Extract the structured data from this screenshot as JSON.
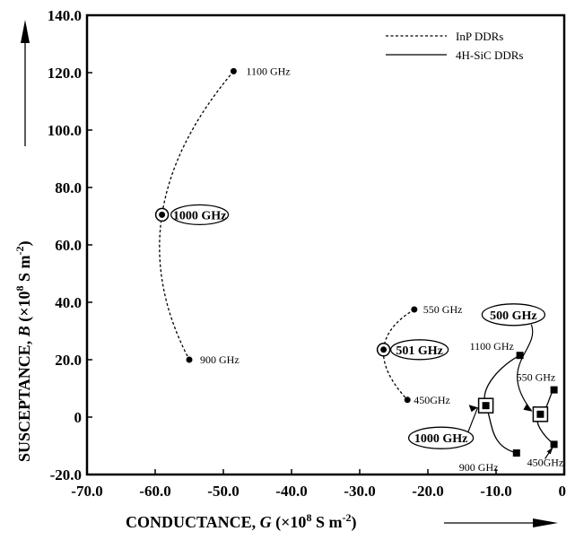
{
  "chart_data": {
    "type": "scatter",
    "title": "",
    "xlabel": {
      "prefix": "CONDUCTANCE, ",
      "symbol": "G",
      "unit": " (×10",
      "exp": "8",
      "unit2": " S m",
      "exp2": "-2",
      "close": ")"
    },
    "ylabel": {
      "prefix": "SUSCEPTANCE, ",
      "symbol": "B",
      "unit": " (×10",
      "exp": "8",
      "unit2": " S m",
      "exp2": "-2",
      "close": ")"
    },
    "xlim": [
      -70,
      0
    ],
    "ylim": [
      -20,
      140
    ],
    "x_ticks": [
      "-70.0",
      "-60.0",
      "-50.0",
      "-40.0",
      "-30.0",
      "-20.0",
      "-10.0",
      "0"
    ],
    "x_tick_values": [
      -70,
      -60,
      -50,
      -40,
      -30,
      -20,
      -10,
      0
    ],
    "y_ticks": [
      "140.0",
      "120.0",
      "100.0",
      "80.0",
      "60.0",
      "40.0",
      "20.0",
      "0",
      "-20.0"
    ],
    "y_tick_values": [
      140,
      120,
      100,
      80,
      60,
      40,
      20,
      0,
      -20
    ],
    "legend": {
      "position": "top-right",
      "entries": [
        "InP DDRs",
        "4H-SiC DDRs"
      ]
    },
    "series": [
      {
        "name": "InP DDRs",
        "style": "dashed",
        "marker": "circle",
        "groups": [
          {
            "points": [
              {
                "x": -48.5,
                "y": 120.5,
                "label": "1100 GHz"
              },
              {
                "x": -59,
                "y": 70.5,
                "label": "1000 GHz"
              },
              {
                "x": -55,
                "y": 20,
                "label": "900 GHz"
              }
            ],
            "optimum": "1000 GHz"
          },
          {
            "points": [
              {
                "x": -22,
                "y": 37.5,
                "label": "550 GHz"
              },
              {
                "x": -26.5,
                "y": 23.5,
                "label": "501 GHz"
              },
              {
                "x": -23,
                "y": 6,
                "label": "450GHz"
              }
            ],
            "optimum": "501 GHz"
          }
        ]
      },
      {
        "name": "4H-SiC DDRs",
        "style": "solid",
        "marker": "square",
        "groups": [
          {
            "points": [
              {
                "x": -6.5,
                "y": 21.5,
                "label": "1100 GHz"
              },
              {
                "x": -11.5,
                "y": 4,
                "label": "1000 GHz"
              },
              {
                "x": -7,
                "y": -12.5,
                "label": "900 GHz"
              }
            ],
            "optimum": "1000 GHz"
          },
          {
            "points": [
              {
                "x": -1.5,
                "y": 9.5,
                "label": "550 GHz"
              },
              {
                "x": -3.5,
                "y": 1,
                "label": "500 GHz"
              },
              {
                "x": -1.5,
                "y": -9.5,
                "label": "450GHz"
              }
            ],
            "optimum": "500 GHz"
          }
        ]
      }
    ],
    "colors": {
      "line": "#000000",
      "background": "#ffffff"
    }
  }
}
